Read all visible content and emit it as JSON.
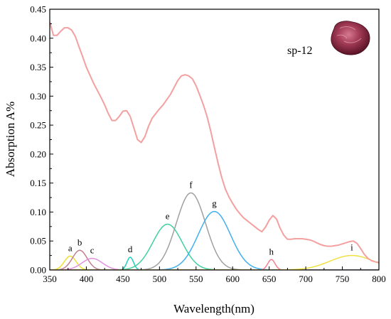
{
  "chart_data": {
    "type": "line",
    "xlabel": "Wavelength(nm)",
    "ylabel": "Absorption A%",
    "xlim": [
      350,
      800
    ],
    "ylim": [
      0,
      0.45
    ],
    "x_ticks": [
      350,
      400,
      450,
      500,
      550,
      600,
      650,
      700,
      750,
      800
    ],
    "y_ticks": [
      0.0,
      0.05,
      0.1,
      0.15,
      0.2,
      0.25,
      0.3,
      0.35,
      0.4,
      0.45
    ],
    "y_tick_labels": [
      "0.00",
      "0.05",
      "0.10",
      "0.15",
      "0.20",
      "0.25",
      "0.30",
      "0.35",
      "0.40",
      "0.45"
    ],
    "legend_label": "sp-12",
    "spectrum": {
      "color": "#f4a0a0",
      "points": [
        [
          350,
          0.428
        ],
        [
          355,
          0.405
        ],
        [
          360,
          0.405
        ],
        [
          365,
          0.412
        ],
        [
          370,
          0.418
        ],
        [
          375,
          0.418
        ],
        [
          380,
          0.414
        ],
        [
          385,
          0.403
        ],
        [
          390,
          0.385
        ],
        [
          395,
          0.368
        ],
        [
          400,
          0.35
        ],
        [
          405,
          0.336
        ],
        [
          410,
          0.322
        ],
        [
          415,
          0.31
        ],
        [
          420,
          0.298
        ],
        [
          425,
          0.285
        ],
        [
          430,
          0.27
        ],
        [
          435,
          0.258
        ],
        [
          440,
          0.258
        ],
        [
          445,
          0.265
        ],
        [
          450,
          0.274
        ],
        [
          455,
          0.275
        ],
        [
          460,
          0.265
        ],
        [
          465,
          0.245
        ],
        [
          470,
          0.225
        ],
        [
          475,
          0.22
        ],
        [
          480,
          0.23
        ],
        [
          485,
          0.248
        ],
        [
          490,
          0.262
        ],
        [
          495,
          0.27
        ],
        [
          500,
          0.278
        ],
        [
          505,
          0.285
        ],
        [
          510,
          0.294
        ],
        [
          515,
          0.303
        ],
        [
          520,
          0.315
        ],
        [
          525,
          0.327
        ],
        [
          530,
          0.335
        ],
        [
          535,
          0.337
        ],
        [
          540,
          0.335
        ],
        [
          545,
          0.33
        ],
        [
          550,
          0.318
        ],
        [
          555,
          0.302
        ],
        [
          560,
          0.285
        ],
        [
          565,
          0.265
        ],
        [
          570,
          0.24
        ],
        [
          575,
          0.212
        ],
        [
          580,
          0.185
        ],
        [
          585,
          0.16
        ],
        [
          590,
          0.14
        ],
        [
          595,
          0.126
        ],
        [
          600,
          0.115
        ],
        [
          605,
          0.105
        ],
        [
          610,
          0.097
        ],
        [
          615,
          0.09
        ],
        [
          620,
          0.085
        ],
        [
          625,
          0.08
        ],
        [
          630,
          0.075
        ],
        [
          635,
          0.07
        ],
        [
          640,
          0.066
        ],
        [
          645,
          0.074
        ],
        [
          650,
          0.086
        ],
        [
          655,
          0.094
        ],
        [
          660,
          0.088
        ],
        [
          665,
          0.072
        ],
        [
          670,
          0.06
        ],
        [
          675,
          0.053
        ],
        [
          680,
          0.053
        ],
        [
          685,
          0.054
        ],
        [
          690,
          0.054
        ],
        [
          695,
          0.054
        ],
        [
          700,
          0.053
        ],
        [
          705,
          0.052
        ],
        [
          710,
          0.05
        ],
        [
          715,
          0.047
        ],
        [
          720,
          0.044
        ],
        [
          725,
          0.042
        ],
        [
          730,
          0.041
        ],
        [
          735,
          0.041
        ],
        [
          740,
          0.042
        ],
        [
          745,
          0.043
        ],
        [
          750,
          0.045
        ],
        [
          755,
          0.047
        ],
        [
          760,
          0.049
        ],
        [
          765,
          0.05
        ],
        [
          770,
          0.046
        ],
        [
          775,
          0.037
        ],
        [
          780,
          0.027
        ],
        [
          785,
          0.02
        ],
        [
          790,
          0.016
        ],
        [
          795,
          0.014
        ],
        [
          800,
          0.013
        ]
      ]
    },
    "peaks": [
      {
        "label": "a",
        "center": 378,
        "amplitude": 0.024,
        "width": 8,
        "color": "#f0e030"
      },
      {
        "label": "b",
        "center": 391,
        "amplitude": 0.034,
        "width": 10,
        "color": "#c08090"
      },
      {
        "label": "c",
        "center": 408,
        "amplitude": 0.02,
        "width": 14,
        "color": "#e090e0"
      },
      {
        "label": "d",
        "center": 460,
        "amplitude": 0.022,
        "width": 4.5,
        "color": "#20d0c0"
      },
      {
        "label": "e",
        "center": 511,
        "amplitude": 0.079,
        "width": 20,
        "color": "#40d0a0"
      },
      {
        "label": "f",
        "center": 543,
        "amplitude": 0.133,
        "width": 20,
        "color": "#a0a0a0"
      },
      {
        "label": "g",
        "center": 575,
        "amplitude": 0.101,
        "width": 22,
        "color": "#40b0f0"
      },
      {
        "label": "h",
        "center": 653,
        "amplitude": 0.018,
        "width": 5,
        "color": "#f08090"
      },
      {
        "label": "i",
        "center": 763,
        "amplitude": 0.025,
        "width": 30,
        "color": "#f0e040"
      }
    ]
  }
}
